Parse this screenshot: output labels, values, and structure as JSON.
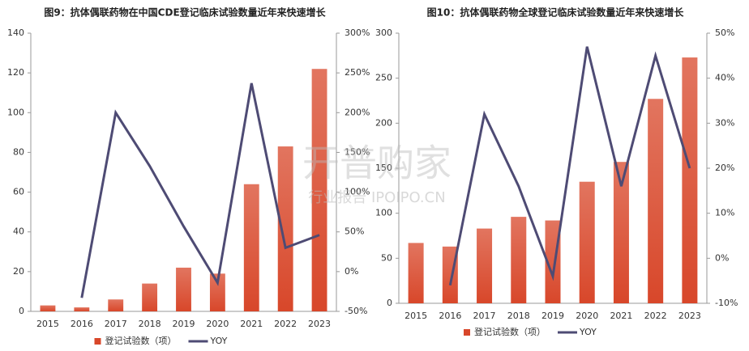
{
  "chart_data": [
    {
      "type": "bar-line",
      "title": "图9：抗体偶联药物在中国CDE登记临床试验数量近年来快速增长",
      "categories": [
        "2015",
        "2016",
        "2017",
        "2018",
        "2019",
        "2020",
        "2021",
        "2022",
        "2023"
      ],
      "series": [
        {
          "name": "登记试验数（项）",
          "color": "#d8472a",
          "values": [
            3,
            2,
            6,
            14,
            22,
            19,
            64,
            83,
            122
          ]
        },
        {
          "name": "YOY",
          "color": "#4e4b74",
          "axis": "y2",
          "values": [
            null,
            -33,
            200,
            133,
            57,
            -14,
            237,
            30,
            46
          ]
        }
      ],
      "ylim": [
        0,
        140
      ],
      "yticks": [
        0,
        20,
        40,
        60,
        80,
        100,
        120,
        140
      ],
      "y2lim": [
        -50,
        300
      ],
      "y2ticks": [
        {
          "value": -50,
          "label": "-50%"
        },
        {
          "value": 0,
          "label": "0%"
        },
        {
          "value": 50,
          "label": "50%"
        },
        {
          "value": 100,
          "label": "100%"
        },
        {
          "value": 150,
          "label": "150%"
        },
        {
          "value": 200,
          "label": "200%"
        },
        {
          "value": 250,
          "label": "250%"
        },
        {
          "value": 300,
          "label": "300%"
        }
      ]
    },
    {
      "type": "bar-line",
      "title": "图10：抗体偶联药物全球登记临床试验数量近年来快速增长",
      "categories": [
        "2015",
        "2016",
        "2017",
        "2018",
        "2019",
        "2020",
        "2021",
        "2022",
        "2023"
      ],
      "series": [
        {
          "name": "登记试验数（项）",
          "color": "#d8472a",
          "values": [
            67,
            63,
            83,
            96,
            92,
            135,
            157,
            227,
            273
          ]
        },
        {
          "name": "YOY",
          "color": "#4e4b74",
          "axis": "y2",
          "values": [
            null,
            -6,
            32,
            16,
            -4,
            47,
            16,
            45,
            20
          ]
        }
      ],
      "ylim": [
        0,
        300
      ],
      "yticks": [
        0,
        50,
        100,
        150,
        200,
        250,
        300
      ],
      "y2lim": [
        -10,
        50
      ],
      "y2ticks": [
        {
          "value": -10,
          "label": "-10%"
        },
        {
          "value": 0,
          "label": "0%"
        },
        {
          "value": 10,
          "label": "10%"
        },
        {
          "value": 20,
          "label": "20%"
        },
        {
          "value": 30,
          "label": "30%"
        },
        {
          "value": 40,
          "label": "40%"
        },
        {
          "value": 50,
          "label": "50%"
        }
      ]
    }
  ],
  "watermark": {
    "brand": "开普购家",
    "line": "行业报告 IPOIPO.CN"
  }
}
